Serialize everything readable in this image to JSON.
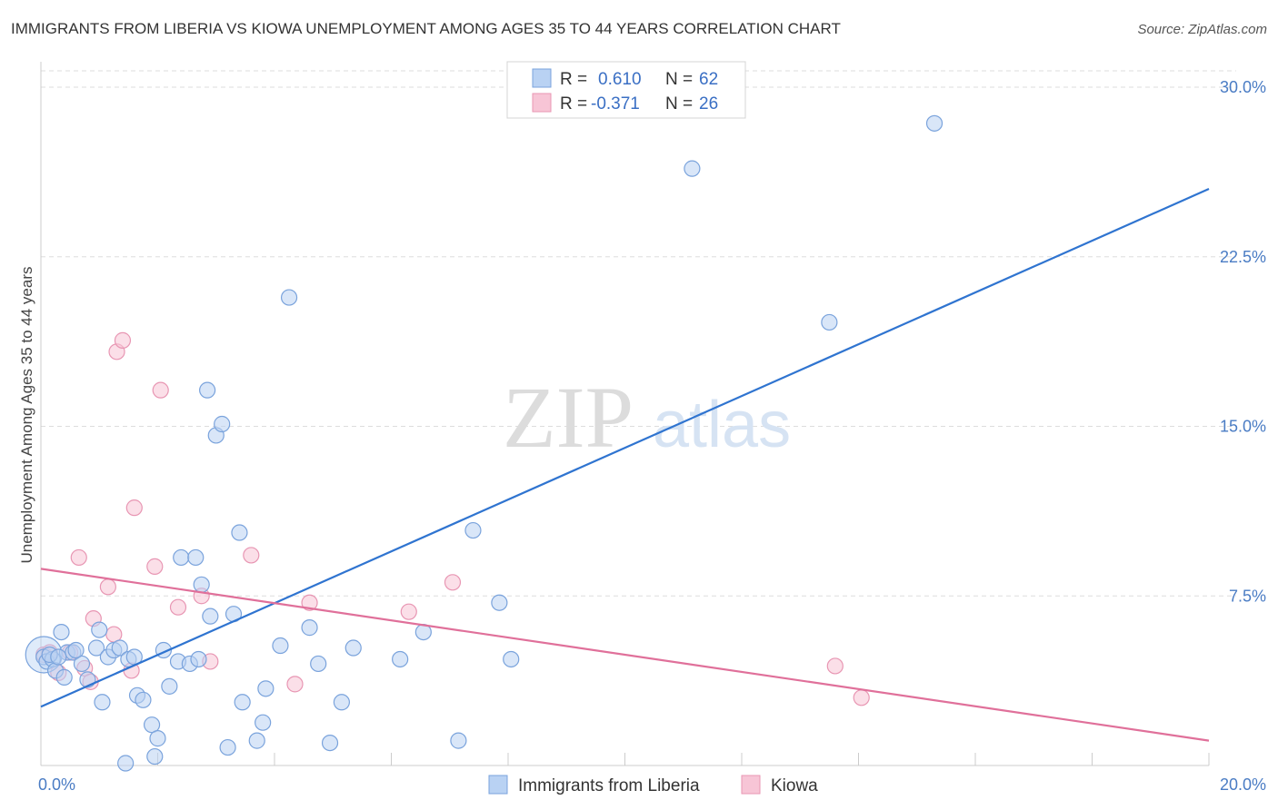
{
  "header": {
    "title": "IMMIGRANTS FROM LIBERIA VS KIOWA UNEMPLOYMENT AMONG AGES 35 TO 44 YEARS CORRELATION CHART",
    "source": "Source: ZipAtlas.com"
  },
  "watermark": {
    "zip": "ZIP",
    "atlas": "atlas"
  },
  "colors": {
    "liberia_fill": "#b9d2f3",
    "liberia_stroke": "#7aa3dc",
    "liberia_line": "#2f74d0",
    "kiowa_fill": "#f7c5d6",
    "kiowa_stroke": "#e896b3",
    "kiowa_line": "#e0709a",
    "grid": "#dddddd",
    "tick_text": "#4a7cc4"
  },
  "legend": {
    "rows": [
      {
        "r_label": "R =",
        "r_value": "0.610",
        "n_label": "N =",
        "n_value": "62"
      },
      {
        "r_label": "R =",
        "r_value": "-0.371",
        "n_label": "N =",
        "n_value": "26"
      }
    ]
  },
  "chart_data": {
    "type": "scatter",
    "title": "IMMIGRANTS FROM LIBERIA VS KIOWA UNEMPLOYMENT AMONG AGES 35 TO 44 YEARS CORRELATION CHART",
    "xlabel": "",
    "ylabel": "Unemployment Among Ages 35 to 44 years",
    "xlim": [
      0,
      20
    ],
    "ylim": [
      0,
      30
    ],
    "x_tick_labels": [
      {
        "value": 0,
        "label": "0.0%"
      },
      {
        "value": 20,
        "label": "20.0%"
      }
    ],
    "y_tick_labels": [
      {
        "value": 7.5,
        "label": "7.5%"
      },
      {
        "value": 15,
        "label": "15.0%"
      },
      {
        "value": 22.5,
        "label": "22.5%"
      },
      {
        "value": 30,
        "label": "30.0%"
      }
    ],
    "series": [
      {
        "name": "Immigrants from Liberia",
        "r": 0.61,
        "n": 62,
        "trend": [
          [
            0,
            2.6
          ],
          [
            20,
            25.5
          ]
        ],
        "points": [
          [
            0.05,
            4.8
          ],
          [
            0.1,
            4.6
          ],
          [
            0.2,
            4.7
          ],
          [
            0.25,
            4.2
          ],
          [
            0.35,
            5.9
          ],
          [
            0.45,
            5.0
          ],
          [
            0.55,
            5.0
          ],
          [
            0.7,
            4.5
          ],
          [
            0.8,
            3.8
          ],
          [
            0.95,
            5.2
          ],
          [
            1.05,
            2.8
          ],
          [
            1.15,
            4.8
          ],
          [
            1.25,
            5.1
          ],
          [
            1.35,
            5.2
          ],
          [
            1.45,
            0.1
          ],
          [
            1.5,
            4.7
          ],
          [
            1.6,
            4.8
          ],
          [
            1.65,
            3.1
          ],
          [
            1.75,
            2.9
          ],
          [
            1.9,
            1.8
          ],
          [
            2.0,
            1.2
          ],
          [
            2.1,
            5.1
          ],
          [
            2.2,
            3.5
          ],
          [
            2.35,
            4.6
          ],
          [
            2.4,
            9.2
          ],
          [
            2.55,
            4.5
          ],
          [
            2.65,
            9.2
          ],
          [
            2.75,
            8.0
          ],
          [
            2.85,
            16.6
          ],
          [
            2.9,
            6.6
          ],
          [
            3.0,
            14.6
          ],
          [
            3.1,
            15.1
          ],
          [
            3.2,
            0.8
          ],
          [
            3.3,
            6.7
          ],
          [
            3.4,
            10.3
          ],
          [
            3.45,
            2.8
          ],
          [
            3.7,
            1.1
          ],
          [
            3.8,
            1.9
          ],
          [
            3.85,
            3.4
          ],
          [
            4.1,
            5.3
          ],
          [
            4.25,
            20.7
          ],
          [
            4.6,
            6.1
          ],
          [
            4.75,
            4.5
          ],
          [
            4.95,
            1.0
          ],
          [
            5.15,
            2.8
          ],
          [
            5.35,
            5.2
          ],
          [
            6.15,
            4.7
          ],
          [
            6.55,
            5.9
          ],
          [
            7.15,
            1.1
          ],
          [
            7.4,
            10.4
          ],
          [
            7.85,
            7.2
          ],
          [
            8.05,
            4.7
          ],
          [
            11.15,
            26.4
          ],
          [
            13.5,
            19.6
          ],
          [
            15.3,
            28.4
          ],
          [
            1.95,
            0.4
          ],
          [
            0.15,
            4.9
          ],
          [
            0.3,
            4.8
          ],
          [
            0.6,
            5.1
          ],
          [
            1.0,
            6.0
          ],
          [
            0.4,
            3.9
          ],
          [
            2.7,
            4.7
          ]
        ]
      },
      {
        "name": "Kiowa",
        "r": -0.371,
        "n": 26,
        "trend": [
          [
            0,
            8.7
          ],
          [
            20,
            1.1
          ]
        ],
        "points": [
          [
            0.05,
            4.9
          ],
          [
            0.15,
            5.0
          ],
          [
            0.3,
            4.1
          ],
          [
            0.5,
            5.0
          ],
          [
            0.65,
            9.2
          ],
          [
            0.75,
            4.3
          ],
          [
            0.85,
            3.7
          ],
          [
            0.9,
            6.5
          ],
          [
            1.15,
            7.9
          ],
          [
            1.25,
            5.8
          ],
          [
            1.3,
            18.3
          ],
          [
            1.4,
            18.8
          ],
          [
            1.55,
            4.2
          ],
          [
            1.6,
            11.4
          ],
          [
            1.95,
            8.8
          ],
          [
            2.05,
            16.6
          ],
          [
            2.35,
            7.0
          ],
          [
            2.75,
            7.5
          ],
          [
            2.9,
            4.6
          ],
          [
            3.6,
            9.3
          ],
          [
            4.35,
            3.6
          ],
          [
            4.6,
            7.2
          ],
          [
            6.3,
            6.8
          ],
          [
            7.05,
            8.1
          ],
          [
            13.6,
            4.4
          ],
          [
            14.05,
            3.0
          ]
        ]
      }
    ],
    "extra_points_note": ""
  },
  "bottom_legend": {
    "items": [
      {
        "label": "Immigrants from Liberia"
      },
      {
        "label": "Kiowa"
      }
    ]
  }
}
